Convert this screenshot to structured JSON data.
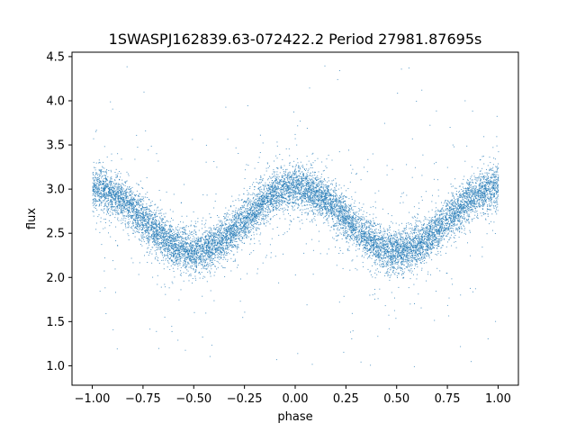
{
  "chart_data": {
    "type": "scatter",
    "title": "1SWASPJ162839.63-072422.2 Period 27981.87695s",
    "xlabel": "phase",
    "ylabel": "flux",
    "xlim": [
      -1.1,
      1.1
    ],
    "ylim": [
      0.78,
      4.55
    ],
    "xticks": [
      -1.0,
      -0.75,
      -0.5,
      -0.25,
      0.0,
      0.25,
      0.5,
      0.75,
      1.0
    ],
    "xtick_labels": [
      "−1.00",
      "−0.75",
      "−0.50",
      "−0.25",
      "0.00",
      "0.25",
      "0.50",
      "0.75",
      "1.00"
    ],
    "yticks": [
      1.0,
      1.5,
      2.0,
      2.5,
      3.0,
      3.5,
      4.0,
      4.5
    ],
    "ytick_labels": [
      "1.0",
      "1.5",
      "2.0",
      "2.5",
      "3.0",
      "3.5",
      "4.0",
      "4.5"
    ],
    "grid": false,
    "legend": "none",
    "color": "#1f77b4",
    "series": [
      {
        "phase_range": [
          -1.0,
          1.0
        ],
        "model": "sinusoid",
        "mean_flux": 2.66,
        "amplitude": 0.36,
        "period_in_phase": 1.0,
        "max_at_phase": [
          -1.0,
          0.0,
          1.0
        ],
        "min_at_phase": [
          -0.5,
          0.5
        ],
        "scatter_sigma": 0.12,
        "outlier_range": [
          0.93,
          4.42
        ]
      }
    ]
  }
}
